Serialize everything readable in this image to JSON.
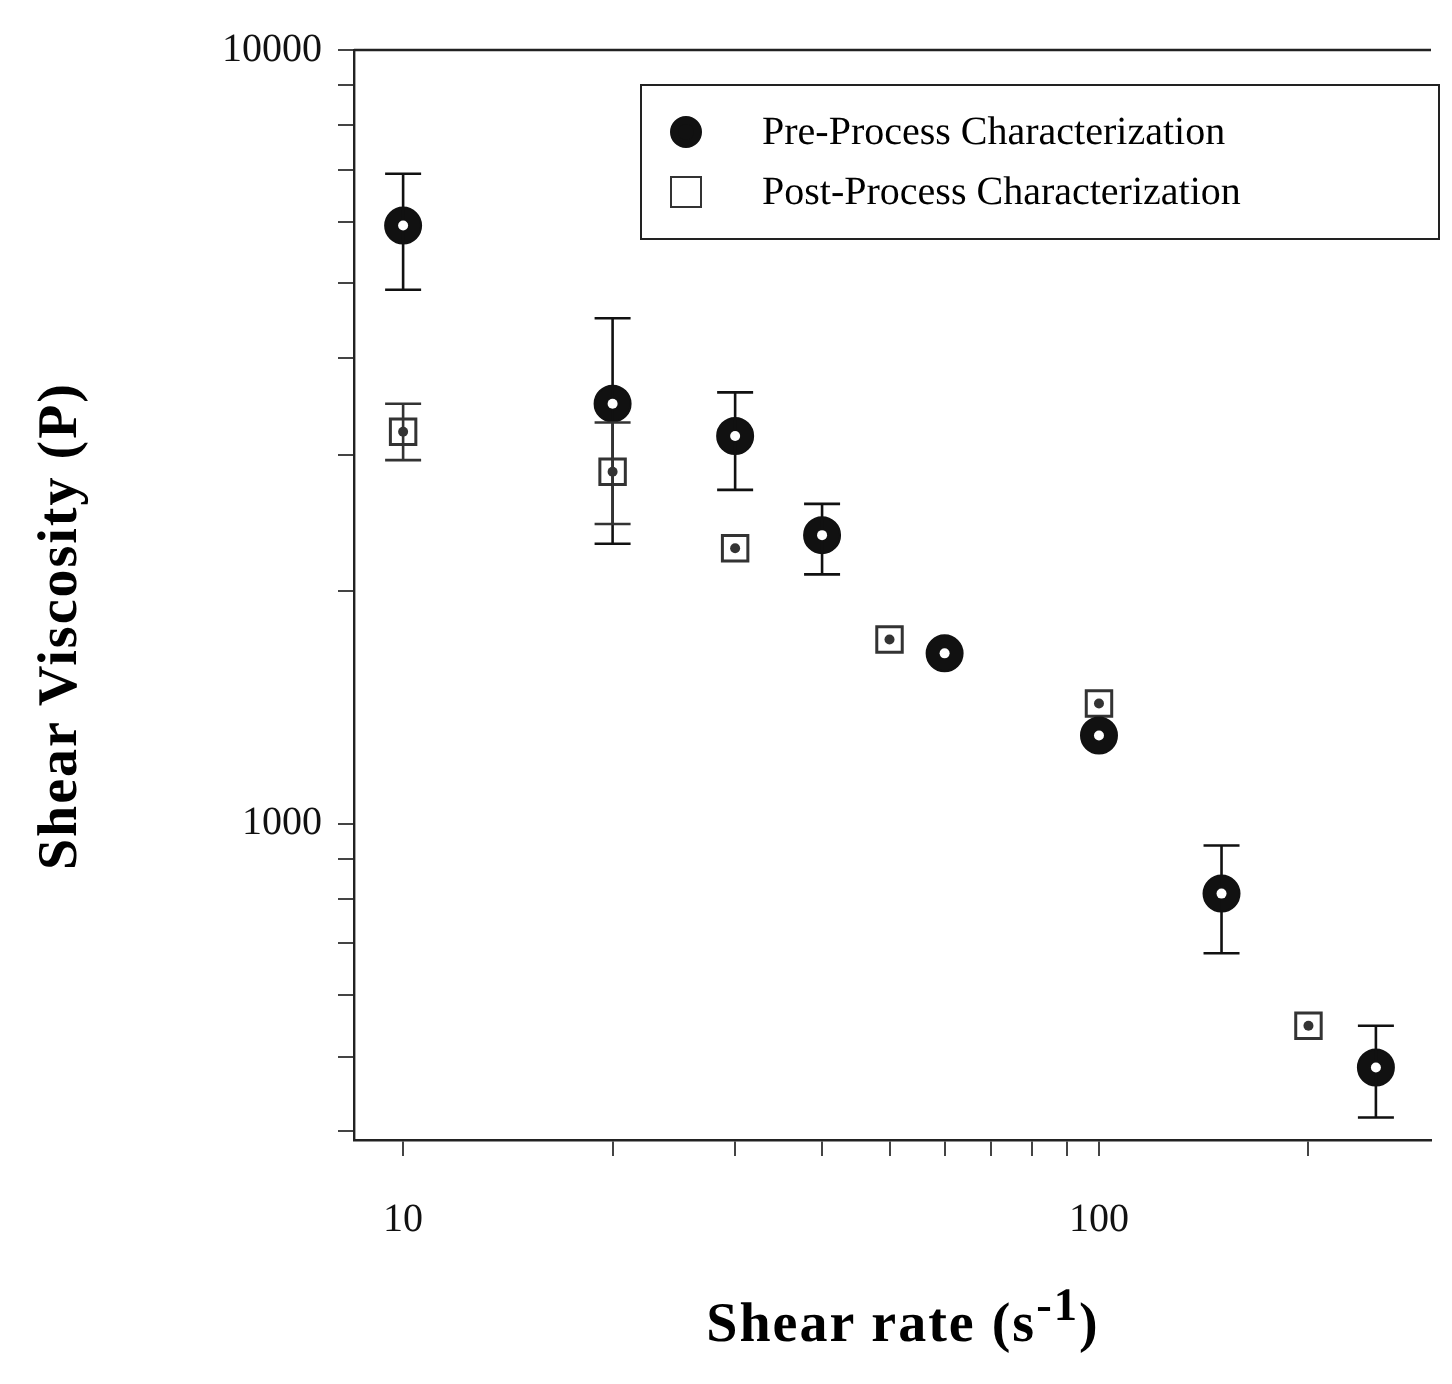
{
  "chart_data": {
    "type": "scatter",
    "xlabel": "Shear rate (s$^{-1}$)",
    "ylabel": "Shear Viscosity (P)",
    "log": "xy",
    "grid": false,
    "legend": "top right",
    "xlim": [
      8.5,
      300
    ],
    "xticks": [
      10,
      {
        "value": 20,
        "label": null
      },
      {
        "value": 30,
        "label": null
      },
      {
        "value": 40,
        "label": null
      },
      {
        "value": 50,
        "label": null
      },
      {
        "value": 60,
        "label": null
      },
      {
        "value": 70,
        "label": null
      },
      {
        "value": 80,
        "label": null
      },
      {
        "value": 90,
        "label": null
      },
      100,
      {
        "value": 200,
        "label": null
      }
    ],
    "ylim": [
      390,
      10000
    ],
    "yticks": [
      {
        "value": 400,
        "label": null
      },
      {
        "value": 500,
        "label": null
      },
      {
        "value": 600,
        "label": null
      },
      {
        "value": 700,
        "label": null
      },
      {
        "value": 800,
        "label": null
      },
      {
        "value": 900,
        "label": null
      },
      1000,
      {
        "value": 2000,
        "label": null
      },
      {
        "value": 3000,
        "label": null
      },
      {
        "value": 4000,
        "label": null
      },
      {
        "value": 5000,
        "label": null
      },
      {
        "value": 6000,
        "label": null
      },
      {
        "value": 7000,
        "label": null
      },
      {
        "value": 8000,
        "label": null
      },
      {
        "value": 9000,
        "label": null
      },
      10000
    ],
    "series": [
      {
        "name": "Pre-Process Characterization",
        "color": "#111111",
        "marker": "circle",
        "x": [
          10,
          20,
          30,
          40,
          60,
          100,
          150,
          250
        ],
        "values": [
          5930,
          3490,
          3170,
          2360,
          1660,
          1300,
          812,
          484
        ],
        "errors": [
          [
            4900,
            6920
          ],
          [
            2300,
            4500
          ],
          [
            2700,
            3610
          ],
          [
            2100,
            2590
          ],
          null,
          null,
          [
            680,
            937
          ],
          [
            417,
            548
          ]
        ]
      },
      {
        "name": "Post-Process Characterization",
        "color": "#333333",
        "marker": "square",
        "x": [
          10,
          20,
          30,
          50,
          100,
          200
        ],
        "values": [
          3210,
          2850,
          2270,
          1730,
          1430,
          548
        ],
        "errors": [
          [
            2950,
            3490
          ],
          [
            2440,
            3300
          ],
          null,
          null,
          null,
          null
        ]
      }
    ]
  }
}
